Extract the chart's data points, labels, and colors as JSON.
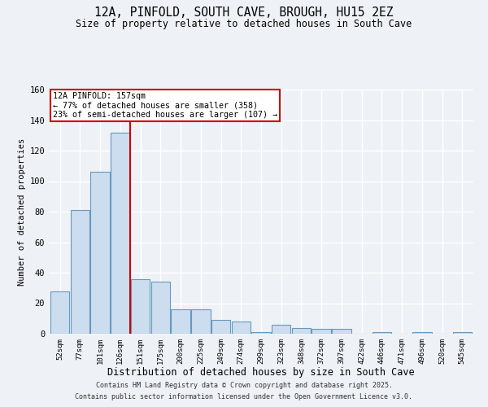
{
  "title_line1": "12A, PINFOLD, SOUTH CAVE, BROUGH, HU15 2EZ",
  "title_line2": "Size of property relative to detached houses in South Cave",
  "xlabel": "Distribution of detached houses by size in South Cave",
  "ylabel": "Number of detached properties",
  "categories": [
    "52sqm",
    "77sqm",
    "101sqm",
    "126sqm",
    "151sqm",
    "175sqm",
    "200sqm",
    "225sqm",
    "249sqm",
    "274sqm",
    "299sqm",
    "323sqm",
    "348sqm",
    "372sqm",
    "397sqm",
    "422sqm",
    "446sqm",
    "471sqm",
    "496sqm",
    "520sqm",
    "545sqm"
  ],
  "values": [
    28,
    81,
    106,
    132,
    36,
    34,
    16,
    16,
    9,
    8,
    1,
    6,
    4,
    3,
    3,
    0,
    1,
    0,
    1,
    0,
    1
  ],
  "bar_color": "#ccddef",
  "bar_edge_color": "#6699bb",
  "annotation_box_text": "12A PINFOLD: 157sqm\n← 77% of detached houses are smaller (358)\n23% of semi-detached houses are larger (107) →",
  "annotation_box_color": "#ffffff",
  "annotation_box_edge_color": "#cc0000",
  "vline_x": 4.0,
  "vline_color": "#cc0000",
  "ylim": [
    0,
    160
  ],
  "yticks": [
    0,
    20,
    40,
    60,
    80,
    100,
    120,
    140,
    160
  ],
  "background_color": "#eef2f7",
  "grid_color": "#ffffff",
  "footnote_line1": "Contains HM Land Registry data © Crown copyright and database right 2025.",
  "footnote_line2": "Contains public sector information licensed under the Open Government Licence v3.0."
}
